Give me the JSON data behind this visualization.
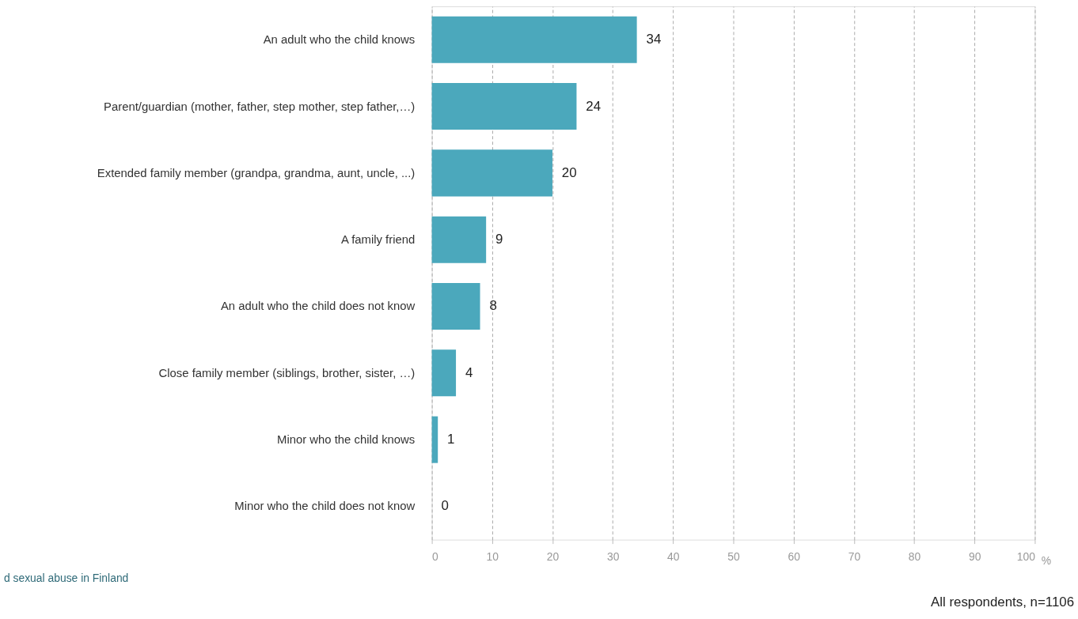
{
  "chart_data": {
    "type": "bar",
    "orientation": "horizontal",
    "categories": [
      "An adult who the child knows",
      "Parent/guardian (mother, father, step mother, step father,…)",
      "Extended family member (grandpa, grandma, aunt, uncle, ...)",
      "A family friend",
      "An adult who the child does not know",
      "Close family member (siblings, brother, sister, …)",
      "Minor who the child knows",
      "Minor who the child does not know"
    ],
    "values": [
      34,
      24,
      20,
      9,
      8,
      4,
      1,
      0
    ],
    "color": "#4ba8bc",
    "xlabel": "%",
    "xlim": [
      0,
      100
    ],
    "xticks": [
      0,
      10,
      20,
      30,
      40,
      50,
      60,
      70,
      80,
      90,
      100
    ],
    "grid": "x",
    "data_labels": true,
    "annotations": [
      "d sexual abuse in Finland",
      "All respondents, n=1106"
    ]
  }
}
